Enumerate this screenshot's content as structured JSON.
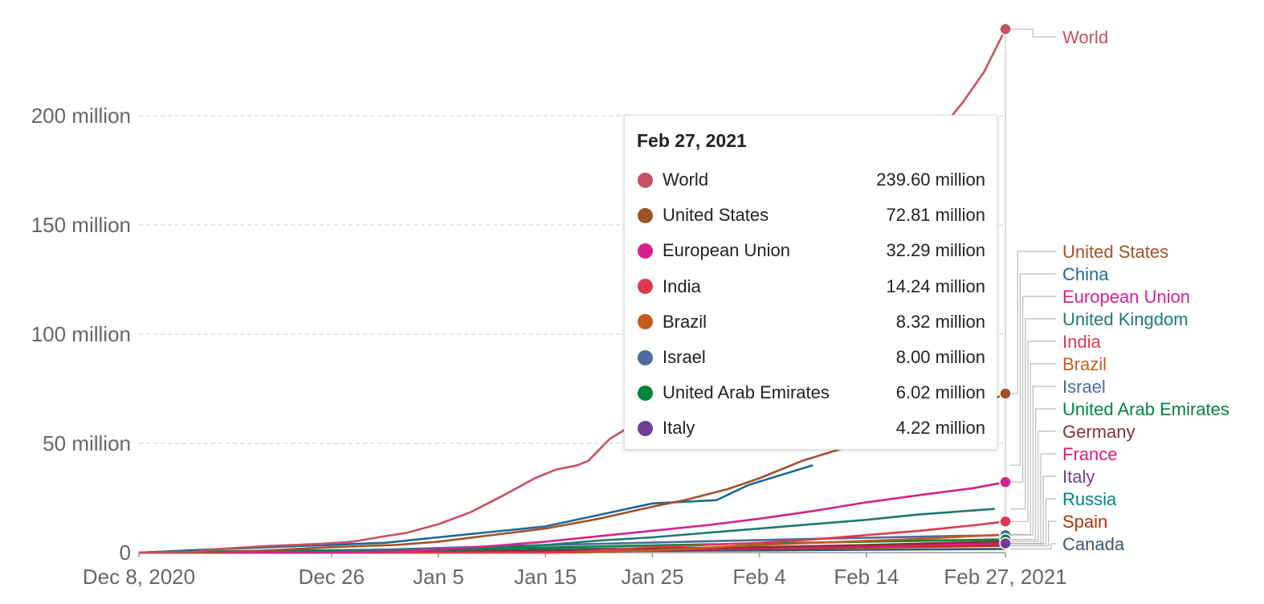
{
  "chart_data": {
    "type": "line",
    "title": "",
    "xlabel": "",
    "ylabel": "",
    "x_ticks": [
      "Dec 8, 2020",
      "Dec 26",
      "Jan 5",
      "Jan 15",
      "Jan 25",
      "Feb 4",
      "Feb 14",
      "Feb 27, 2021"
    ],
    "y_ticks": [
      "0",
      "50 million",
      "100 million",
      "150 million",
      "200 million"
    ],
    "ylim": [
      0,
      240
    ],
    "y_unit": "million",
    "grid": "horizontal-dashed",
    "legend_placement": "right",
    "x_start_date": "Dec 8, 2020",
    "x_end_date": "Feb 27, 2021",
    "series": [
      {
        "name": "World",
        "color": "#c74f63",
        "points": [
          [
            "Dec 8, 2020",
            0
          ],
          [
            "Dec 13",
            0.3
          ],
          [
            "Dec 15",
            1.5
          ],
          [
            "Dec 20",
            3
          ],
          [
            "Dec 25",
            4
          ],
          [
            "Dec 28",
            5
          ],
          [
            "Dec 31",
            7.5
          ],
          [
            "Jan 2",
            9
          ],
          [
            "Jan 5",
            13
          ],
          [
            "Jan 8",
            18.5
          ],
          [
            "Jan 11",
            26
          ],
          [
            "Jan 14",
            34
          ],
          [
            "Jan 16",
            38
          ],
          [
            "Jan 18",
            40
          ],
          [
            "Jan 19",
            42
          ],
          [
            "Jan 21",
            52
          ],
          [
            "Jan 23",
            58
          ],
          [
            "Jan 25",
            64
          ],
          [
            "Jan 28",
            72
          ],
          [
            "Jan 31",
            84
          ],
          [
            "Feb 2",
            95
          ],
          [
            "Feb 4",
            108
          ],
          [
            "Feb 6",
            118
          ],
          [
            "Feb 8",
            128
          ],
          [
            "Feb 10",
            137
          ],
          [
            "Feb 12",
            148
          ],
          [
            "Feb 14",
            158
          ],
          [
            "Feb 17",
            172
          ],
          [
            "Feb 20",
            188
          ],
          [
            "Feb 23",
            206
          ],
          [
            "Feb 25",
            220
          ],
          [
            "Feb 27, 2021",
            239.6
          ]
        ]
      },
      {
        "name": "United States",
        "color": "#a2522b",
        "points": [
          [
            "Dec 8, 2020",
            0
          ],
          [
            "Dec 14",
            0
          ],
          [
            "Dec 20",
            1
          ],
          [
            "Dec 26",
            2.5
          ],
          [
            "Jan 1",
            3.5
          ],
          [
            "Jan 5",
            5
          ],
          [
            "Jan 10",
            8
          ],
          [
            "Jan 15",
            11
          ],
          [
            "Jan 20",
            15.5
          ],
          [
            "Jan 25",
            21
          ],
          [
            "Jan 28",
            24
          ],
          [
            "Feb 1",
            29
          ],
          [
            "Feb 4",
            34
          ],
          [
            "Feb 8",
            42
          ],
          [
            "Feb 12",
            48
          ],
          [
            "Feb 16",
            55
          ],
          [
            "Feb 20",
            60
          ],
          [
            "Feb 24",
            66
          ],
          [
            "Feb 27, 2021",
            72.81
          ]
        ]
      },
      {
        "name": "China",
        "color": "#1d6996",
        "points": [
          [
            "Dec 8, 2020",
            0
          ],
          [
            "Dec 15",
            1.5
          ],
          [
            "Dec 31",
            4.5
          ],
          [
            "Jan 9",
            9
          ],
          [
            "Jan 15",
            12
          ],
          [
            "Jan 25",
            22.5
          ],
          [
            "Jan 31",
            24
          ],
          [
            "Feb 3",
            31
          ],
          [
            "Feb 9",
            40
          ]
        ]
      },
      {
        "name": "European Union",
        "color": "#d6218d",
        "points": [
          [
            "Dec 8, 2020",
            0
          ],
          [
            "Dec 26",
            0
          ],
          [
            "Jan 1",
            0.5
          ],
          [
            "Jan 5",
            1.5
          ],
          [
            "Jan 10",
            3
          ],
          [
            "Jan 15",
            5
          ],
          [
            "Jan 20",
            7.5
          ],
          [
            "Jan 25",
            10
          ],
          [
            "Jan 30",
            12.5
          ],
          [
            "Feb 4",
            15.5
          ],
          [
            "Feb 9",
            19
          ],
          [
            "Feb 14",
            23
          ],
          [
            "Feb 20",
            27
          ],
          [
            "Feb 24",
            29.5
          ],
          [
            "Feb 27, 2021",
            32.29
          ]
        ]
      },
      {
        "name": "United Kingdom",
        "color": "#1d7a6a",
        "points": [
          [
            "Dec 8, 2020",
            0
          ],
          [
            "Dec 20",
            0.5
          ],
          [
            "Jan 1",
            1
          ],
          [
            "Jan 10",
            2.5
          ],
          [
            "Jan 15",
            3.5
          ],
          [
            "Jan 20",
            5.5
          ],
          [
            "Jan 25",
            7
          ],
          [
            "Jan 30",
            9
          ],
          [
            "Feb 4",
            11
          ],
          [
            "Feb 9",
            13
          ],
          [
            "Feb 14",
            15
          ],
          [
            "Feb 19",
            17.5
          ],
          [
            "Feb 26",
            20
          ]
        ]
      },
      {
        "name": "India",
        "color": "#e0394f",
        "points": [
          [
            "Dec 8, 2020",
            0
          ],
          [
            "Jan 16",
            0
          ],
          [
            "Jan 20",
            1
          ],
          [
            "Jan 25",
            2.5
          ],
          [
            "Jan 31",
            3.7
          ],
          [
            "Feb 4",
            4.5
          ],
          [
            "Feb 9",
            6
          ],
          [
            "Feb 14",
            8
          ],
          [
            "Feb 19",
            10
          ],
          [
            "Feb 24",
            12.5
          ],
          [
            "Feb 27, 2021",
            14.24
          ]
        ]
      },
      {
        "name": "Brazil",
        "color": "#c55a1b",
        "points": [
          [
            "Dec 8, 2020",
            0
          ],
          [
            "Jan 18",
            0
          ],
          [
            "Jan 22",
            0.5
          ],
          [
            "Jan 27",
            1.5
          ],
          [
            "Feb 4",
            3.5
          ],
          [
            "Feb 12",
            5
          ],
          [
            "Feb 20",
            6.5
          ],
          [
            "Feb 27, 2021",
            8.32
          ]
        ]
      },
      {
        "name": "Israel",
        "color": "#4c6a9c",
        "points": [
          [
            "Dec 8, 2020",
            0
          ],
          [
            "Dec 20",
            0
          ],
          [
            "Dec 24",
            0.5
          ],
          [
            "Jan 1",
            1.5
          ],
          [
            "Jan 10",
            2.8
          ],
          [
            "Jan 20",
            4
          ],
          [
            "Jan 30",
            5.2
          ],
          [
            "Feb 9",
            6.3
          ],
          [
            "Feb 18",
            7.2
          ],
          [
            "Feb 27, 2021",
            8.0
          ]
        ]
      },
      {
        "name": "United Arab Emirates",
        "color": "#00843c",
        "points": [
          [
            "Dec 8, 2020",
            0
          ],
          [
            "Dec 14",
            0.5
          ],
          [
            "Dec 24",
            1
          ],
          [
            "Jan 5",
            1.6
          ],
          [
            "Jan 15",
            2.3
          ],
          [
            "Jan 25",
            3.3
          ],
          [
            "Feb 4",
            4.2
          ],
          [
            "Feb 14",
            5
          ],
          [
            "Feb 27, 2021",
            6.02
          ]
        ]
      },
      {
        "name": "Germany",
        "color": "#883039",
        "points": [
          [
            "Dec 8, 2020",
            0
          ],
          [
            "Dec 26",
            0
          ],
          [
            "Jan 5",
            0.4
          ],
          [
            "Jan 15",
            1
          ],
          [
            "Jan 25",
            1.8
          ],
          [
            "Feb 4",
            2.5
          ],
          [
            "Feb 14",
            3.5
          ],
          [
            "Feb 27, 2021",
            5.2
          ]
        ]
      },
      {
        "name": "France",
        "color": "#e31a77",
        "points": [
          [
            "Dec 8, 2020",
            0
          ],
          [
            "Dec 27",
            0
          ],
          [
            "Jan 5",
            0.1
          ],
          [
            "Jan 15",
            0.6
          ],
          [
            "Jan 25",
            1.3
          ],
          [
            "Feb 4",
            2
          ],
          [
            "Feb 14",
            2.8
          ],
          [
            "Feb 27, 2021",
            4.0
          ]
        ]
      },
      {
        "name": "Italy",
        "color": "#6d3e91",
        "points": [
          [
            "Dec 8, 2020",
            0
          ],
          [
            "Dec 27",
            0
          ],
          [
            "Jan 5",
            0.2
          ],
          [
            "Jan 15",
            1
          ],
          [
            "Jan 25",
            1.5
          ],
          [
            "Feb 4",
            2.3
          ],
          [
            "Feb 14",
            3
          ],
          [
            "Feb 27, 2021",
            4.22
          ]
        ]
      },
      {
        "name": "Russia",
        "color": "#00847e",
        "points": [
          [
            "Dec 8, 2020",
            0
          ],
          [
            "Dec 15",
            0.1
          ],
          [
            "Dec 31",
            0.8
          ],
          [
            "Jan 15",
            1.5
          ],
          [
            "Jan 25",
            2
          ],
          [
            "Feb 4",
            2.5
          ],
          [
            "Feb 14",
            3.2
          ],
          [
            "Feb 27, 2021",
            3.9
          ]
        ]
      },
      {
        "name": "Spain",
        "color": "#b13507",
        "points": [
          [
            "Dec 8, 2020",
            0
          ],
          [
            "Dec 27",
            0
          ],
          [
            "Jan 5",
            0.1
          ],
          [
            "Jan 15",
            0.8
          ],
          [
            "Jan 25",
            1.2
          ],
          [
            "Feb 4",
            1.8
          ],
          [
            "Feb 14",
            2.3
          ],
          [
            "Feb 27, 2021",
            3.1
          ]
        ]
      },
      {
        "name": "Canada",
        "color": "#3a5371",
        "points": [
          [
            "Dec 8, 2020",
            0
          ],
          [
            "Dec 14",
            0.05
          ],
          [
            "Jan 5",
            0.3
          ],
          [
            "Jan 15",
            0.5
          ],
          [
            "Jan 25",
            0.8
          ],
          [
            "Feb 4",
            1
          ],
          [
            "Feb 14",
            1.3
          ],
          [
            "Feb 27, 2021",
            1.7
          ]
        ]
      }
    ],
    "end_markers": [
      "World",
      "United States",
      "European Union",
      "India",
      "Brazil",
      "Israel",
      "United Arab Emirates",
      "Italy"
    ],
    "legend": [
      {
        "label": "World",
        "color": "#c74f63"
      },
      {
        "label": "United States",
        "color": "#a2522b"
      },
      {
        "label": "China",
        "color": "#1d6996"
      },
      {
        "label": "European Union",
        "color": "#d6218d"
      },
      {
        "label": "United Kingdom",
        "color": "#1d7a6a"
      },
      {
        "label": "India",
        "color": "#e0394f"
      },
      {
        "label": "Brazil",
        "color": "#c55a1b"
      },
      {
        "label": "Israel",
        "color": "#4c6a9c"
      },
      {
        "label": "United Arab Emirates",
        "color": "#00843c"
      },
      {
        "label": "Germany",
        "color": "#883039"
      },
      {
        "label": "France",
        "color": "#e31a77"
      },
      {
        "label": "Italy",
        "color": "#6d3e91"
      },
      {
        "label": "Russia",
        "color": "#00847e"
      },
      {
        "label": "Spain",
        "color": "#b13507"
      },
      {
        "label": "Canada",
        "color": "#3a5371"
      }
    ],
    "tooltip": {
      "date": "Feb 27, 2021",
      "rows": [
        {
          "name": "World",
          "value": "239.60 million",
          "color": "#c74f63"
        },
        {
          "name": "United States",
          "value": "72.81 million",
          "color": "#a2522b"
        },
        {
          "name": "European Union",
          "value": "32.29 million",
          "color": "#d6218d"
        },
        {
          "name": "India",
          "value": "14.24 million",
          "color": "#e0394f"
        },
        {
          "name": "Brazil",
          "value": "8.32 million",
          "color": "#c55a1b"
        },
        {
          "name": "Israel",
          "value": "8.00 million",
          "color": "#4c6a9c"
        },
        {
          "name": "United Arab Emirates",
          "value": "6.02 million",
          "color": "#00843c"
        },
        {
          "name": "Italy",
          "value": "4.22 million",
          "color": "#6d3e91"
        }
      ]
    }
  }
}
